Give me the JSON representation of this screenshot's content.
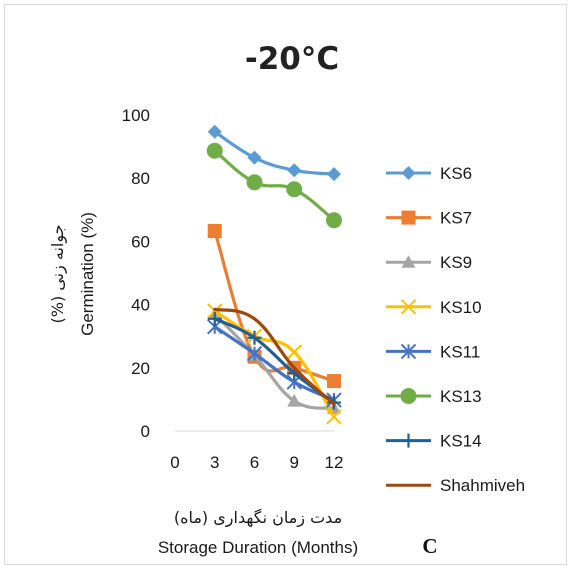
{
  "chart_data": {
    "type": "line",
    "title": "-20°C",
    "panel_label": "C",
    "xlabel": "Storage Duration (Months)",
    "xlabel_persian": "مدت زمان نگهداری (ماه)",
    "ylabel": "Germination (%)",
    "ylabel_persian": "جوانه زنی (%)",
    "xlim": [
      0,
      12
    ],
    "ylim": [
      0,
      100
    ],
    "x_ticks": [
      "0",
      "3",
      "6",
      "9",
      "12"
    ],
    "y_ticks": [
      "0",
      "20",
      "40",
      "60",
      "80",
      "100"
    ],
    "grid": false,
    "legend_position": "right",
    "x": [
      3,
      6,
      9,
      12
    ],
    "series": [
      {
        "name": "KS6",
        "values": [
          94.7,
          86.5,
          82.5,
          81.3
        ],
        "color": "#5b9bd5",
        "marker": "diamond"
      },
      {
        "name": "KS7",
        "values": [
          63.3,
          23.5,
          20.0,
          15.8
        ],
        "color": "#ed7d31",
        "marker": "square"
      },
      {
        "name": "KS9",
        "values": [
          37.0,
          24.0,
          9.5,
          7.2
        ],
        "color": "#a5a5a5",
        "marker": "triangle"
      },
      {
        "name": "KS10",
        "values": [
          38.0,
          30.0,
          25.0,
          4.5
        ],
        "color": "#ffc000",
        "marker": "x"
      },
      {
        "name": "KS11",
        "values": [
          33.0,
          24.5,
          15.5,
          9.8
        ],
        "color": "#4472c4",
        "marker": "star"
      },
      {
        "name": "KS13",
        "values": [
          88.7,
          78.7,
          76.5,
          66.7
        ],
        "color": "#70ad47",
        "marker": "circle"
      },
      {
        "name": "KS14",
        "values": [
          35.5,
          29.5,
          18.3,
          9.0
        ],
        "color": "#255e91",
        "marker": "plus"
      },
      {
        "name": "Shahmiveh",
        "values": [
          38.5,
          35.5,
          20.0,
          8.5
        ],
        "color": "#9e480e",
        "marker": "none"
      }
    ]
  }
}
